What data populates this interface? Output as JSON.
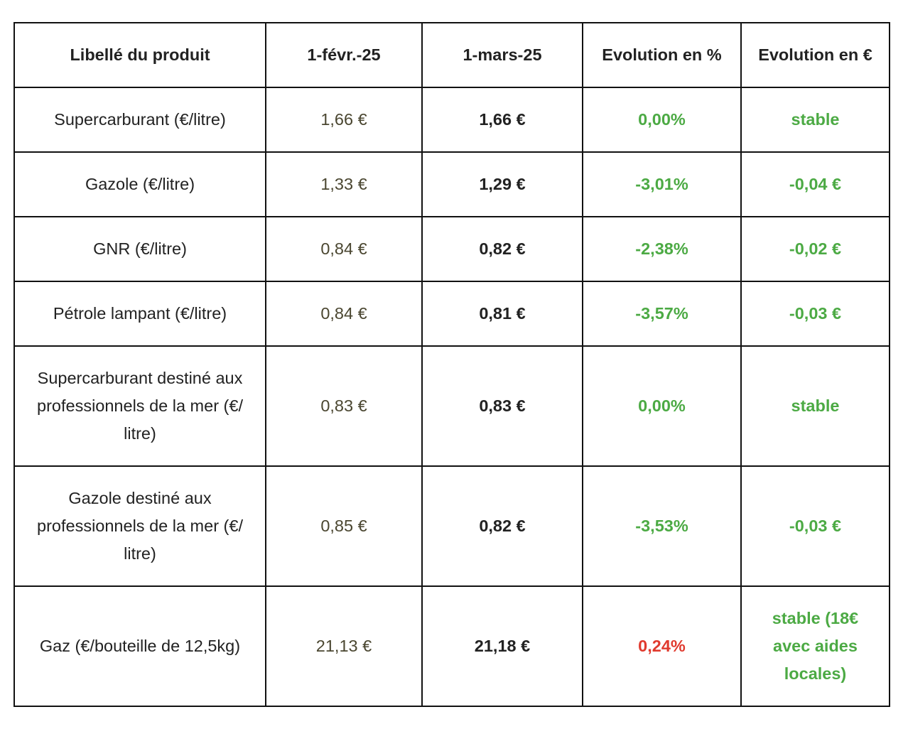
{
  "headers": [
    "Libellé du produit",
    "1-févr.-25",
    "1-mars-25",
    "Evolution en %",
    "Evolution en €"
  ],
  "rows": [
    {
      "product": "Supercarburant (€/litre)",
      "feb": "1,66 €",
      "mar": "1,66 €",
      "pct": "0,00%",
      "eur": "stable",
      "pct_color": "green",
      "eur_color": "green"
    },
    {
      "product": "Gazole (€/litre)",
      "feb": "1,33 €",
      "mar": "1,29 €",
      "pct": "-3,01%",
      "eur": "-0,04 €",
      "pct_color": "green",
      "eur_color": "green"
    },
    {
      "product": "GNR (€/litre)",
      "feb": "0,84 €",
      "mar": "0,82 €",
      "pct": "-2,38%",
      "eur": "-0,02 €",
      "pct_color": "green",
      "eur_color": "green"
    },
    {
      "product": "Pétrole lampant (€/litre)",
      "feb": "0,84 €",
      "mar": "0,81 €",
      "pct": "-3,57%",
      "eur": "-0,03 €",
      "pct_color": "green",
      "eur_color": "green"
    },
    {
      "product": "Supercarburant destiné aux professionnels de la mer (€/ litre)",
      "feb": "0,83 €",
      "mar": "0,83 €",
      "pct": "0,00%",
      "eur": "stable",
      "pct_color": "green",
      "eur_color": "green"
    },
    {
      "product": "Gazole destiné aux professionnels de la mer (€/ litre)",
      "feb": "0,85 €",
      "mar": "0,82 €",
      "pct": "-3,53%",
      "eur": "-0,03 €",
      "pct_color": "green",
      "eur_color": "green"
    },
    {
      "product": "Gaz (€/bouteille de 12,5kg)",
      "feb": "21,13 €",
      "mar": "21,18 €",
      "pct": "0,24%",
      "eur": "stable (18€ avec aides locales)",
      "pct_color": "red",
      "eur_color": "green"
    }
  ],
  "colors": {
    "green": "#4caa44",
    "red": "#e03a2e",
    "feb": "#4a4630"
  }
}
